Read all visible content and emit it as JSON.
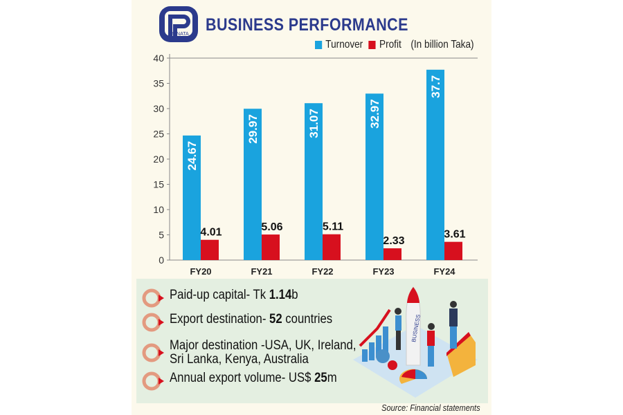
{
  "header": {
    "logo_text": "RENATA",
    "title": "BUSINESS PERFORMANCE",
    "unit_note": "(In billion Taka)"
  },
  "colors": {
    "turnover": "#1aa3de",
    "profit": "#d7101e",
    "title": "#2b3a8c",
    "background": "#fcf9ec",
    "info_box": "#e4efe1"
  },
  "chart_data": {
    "type": "bar",
    "categories": [
      "FY20",
      "FY21",
      "FY22",
      "FY23",
      "FY24"
    ],
    "series": [
      {
        "name": "Turnover",
        "values": [
          24.67,
          29.97,
          31.07,
          32.97,
          37.7
        ],
        "labels": [
          "24.67",
          "29.97",
          "31.07",
          "32.97",
          "37.7"
        ]
      },
      {
        "name": "Profit",
        "values": [
          4.01,
          5.06,
          5.11,
          2.33,
          3.61
        ],
        "labels": [
          "4.01",
          "5.06",
          "5.11",
          "2.33",
          "3.61"
        ]
      }
    ],
    "yticks": [
      "0",
      "5",
      "10",
      "15",
      "20",
      "25",
      "30",
      "35",
      "40"
    ],
    "ylim": [
      0,
      40
    ],
    "grid": false,
    "legend": "top-right"
  },
  "info": {
    "items": [
      {
        "pre": "Paid-up capital- Tk ",
        "bold": "1.14",
        "post": "b"
      },
      {
        "pre": "Export destination- ",
        "bold": "52",
        "post": " countries"
      },
      {
        "pre": "Major destination -USA, UK, Ireland,",
        "bold": "",
        "post": "",
        "line2": "Sri Lanka, Kenya, Australia"
      },
      {
        "pre": " Annual export volume- US$ ",
        "bold": "25",
        "post": "m"
      }
    ],
    "illustration_text": "BUSINESS"
  },
  "source": "Source: Financial statements"
}
